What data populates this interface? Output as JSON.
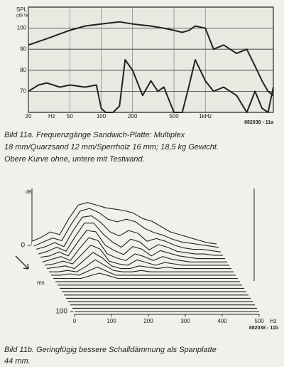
{
  "chart_data": [
    {
      "type": "line",
      "xscale": "log",
      "ylabel": [
        "SPL",
        "(dB W/m)"
      ],
      "xunit": "Hz",
      "xlim": [
        20,
        4500
      ],
      "ylim": [
        60,
        110
      ],
      "xticks": [
        20,
        50,
        100,
        200,
        500,
        {
          "value": 1000,
          "label": "1kHz"
        }
      ],
      "yticks": [
        70,
        80,
        90,
        100
      ],
      "grid": true,
      "series": [
        {
          "color": "#222222",
          "x": [
            20,
            30,
            50,
            70,
            100,
            150,
            200,
            300,
            400,
            500,
            600,
            700,
            800,
            1000,
            1200,
            1500,
            2000,
            2500,
            3000,
            3500,
            4000,
            4500
          ],
          "values": [
            92,
            95,
            99,
            101,
            102,
            103,
            102,
            101,
            100,
            99,
            98,
            99,
            101,
            100,
            90,
            92,
            88,
            90,
            82,
            75,
            70,
            68
          ]
        },
        {
          "color": "#222222",
          "x": [
            20,
            25,
            30,
            40,
            50,
            70,
            90,
            100,
            110,
            130,
            150,
            170,
            200,
            250,
            300,
            350,
            400,
            500,
            600,
            700,
            800,
            1000,
            1200,
            1500,
            2000,
            2500,
            3000,
            3500,
            4000,
            4500
          ],
          "values": [
            70,
            73,
            74,
            72,
            73,
            72,
            73,
            62,
            60,
            60,
            63,
            85,
            80,
            68,
            75,
            70,
            72,
            60,
            60,
            73,
            85,
            75,
            70,
            72,
            68,
            60,
            70,
            62,
            60,
            72
          ]
        }
      ],
      "code": "882038 - 11a",
      "caption": [
        "Bild 11a. Frequenzgänge Sandwich-Platte: Multiplex",
        "18 mm/Quarzsand 12 mm/Sperrholz 16 mm; 18,5 kg Gewicht.",
        "Obere Kurve ohne, untere mit Testwand."
      ]
    },
    {
      "type": "waterfall",
      "zlabel": "dB",
      "ylabel": "ms",
      "xunit": "Hz",
      "xlim": [
        0,
        500
      ],
      "ylim": [
        0,
        100
      ],
      "zlim": [
        0,
        35
      ],
      "xticks": [
        0,
        100,
        200,
        300,
        400,
        500
      ],
      "yticks": [
        0,
        100
      ],
      "x": [
        0,
        25,
        50,
        75,
        100,
        125,
        150,
        175,
        200,
        225,
        250,
        275,
        300,
        325,
        350,
        375,
        400,
        425,
        450,
        475,
        500
      ],
      "times": [
        0,
        5,
        10,
        15,
        20,
        25,
        30,
        35,
        40,
        45,
        50,
        55,
        60,
        65,
        70,
        75,
        80,
        85,
        90,
        95,
        100
      ],
      "series": [
        {
          "values": [
            3,
            6,
            10,
            8,
            20,
            30,
            32,
            30,
            28,
            27,
            26,
            24,
            20,
            18,
            14,
            10,
            8,
            6,
            4,
            2,
            1
          ]
        },
        {
          "values": [
            2,
            5,
            8,
            6,
            18,
            28,
            30,
            27,
            22,
            20,
            22,
            20,
            15,
            12,
            10,
            7,
            5,
            4,
            3,
            2,
            1
          ]
        },
        {
          "values": [
            2,
            4,
            7,
            4,
            16,
            26,
            27,
            22,
            15,
            12,
            16,
            14,
            8,
            10,
            8,
            5,
            3,
            2,
            2,
            1,
            0
          ]
        },
        {
          "values": [
            1,
            3,
            6,
            3,
            14,
            24,
            24,
            16,
            10,
            6,
            12,
            10,
            4,
            8,
            6,
            3,
            2,
            1,
            1,
            0,
            0
          ]
        },
        {
          "values": [
            1,
            2,
            5,
            2,
            12,
            21,
            20,
            10,
            6,
            3,
            9,
            7,
            2,
            6,
            4,
            2,
            1,
            0,
            0,
            0,
            0
          ]
        },
        {
          "values": [
            0,
            2,
            4,
            1,
            10,
            18,
            16,
            6,
            3,
            1,
            6,
            4,
            1,
            4,
            2,
            1,
            0,
            0,
            0,
            0,
            0
          ]
        },
        {
          "values": [
            0,
            1,
            3,
            1,
            8,
            15,
            12,
            3,
            1,
            0,
            4,
            2,
            0,
            2,
            1,
            0,
            0,
            0,
            0,
            0,
            0
          ]
        },
        {
          "values": [
            0,
            1,
            2,
            0,
            6,
            12,
            8,
            2,
            0,
            0,
            2,
            1,
            0,
            1,
            0,
            0,
            0,
            0,
            0,
            0,
            0
          ]
        },
        {
          "values": [
            0,
            0,
            1,
            0,
            4,
            9,
            5,
            1,
            0,
            0,
            1,
            0,
            0,
            0,
            0,
            0,
            0,
            0,
            0,
            0,
            0
          ]
        },
        {
          "values": [
            0,
            0,
            1,
            0,
            3,
            6,
            3,
            0,
            0,
            0,
            0,
            0,
            0,
            0,
            0,
            0,
            0,
            0,
            0,
            0,
            0
          ]
        },
        {
          "values": [
            0,
            0,
            0,
            0,
            2,
            4,
            2,
            0,
            0,
            0,
            0,
            0,
            0,
            0,
            0,
            0,
            0,
            0,
            0,
            0,
            0
          ]
        },
        {
          "values": [
            0,
            0,
            0,
            0,
            0,
            0,
            0,
            0,
            0,
            0,
            0,
            0,
            0,
            0,
            0,
            0,
            0,
            0,
            0,
            0,
            0
          ]
        },
        {
          "values": [
            0,
            0,
            0,
            0,
            0,
            0,
            0,
            0,
            0,
            0,
            0,
            0,
            0,
            0,
            0,
            0,
            0,
            0,
            0,
            0,
            0
          ]
        },
        {
          "values": [
            0,
            0,
            0,
            0,
            0,
            0,
            0,
            0,
            0,
            0,
            0,
            0,
            0,
            0,
            0,
            0,
            0,
            0,
            0,
            0,
            0
          ]
        },
        {
          "values": [
            0,
            0,
            0,
            0,
            0,
            0,
            0,
            0,
            0,
            0,
            0,
            0,
            0,
            0,
            0,
            0,
            0,
            0,
            0,
            0,
            0
          ]
        },
        {
          "values": [
            0,
            0,
            0,
            0,
            0,
            0,
            0,
            0,
            0,
            0,
            0,
            0,
            0,
            0,
            0,
            0,
            0,
            0,
            0,
            0,
            0
          ]
        },
        {
          "values": [
            0,
            0,
            0,
            0,
            0,
            0,
            0,
            0,
            0,
            0,
            0,
            0,
            0,
            0,
            0,
            0,
            0,
            0,
            0,
            0,
            0
          ]
        },
        {
          "values": [
            0,
            0,
            0,
            0,
            0,
            0,
            0,
            0,
            0,
            0,
            0,
            0,
            0,
            0,
            0,
            0,
            0,
            0,
            0,
            0,
            0
          ]
        },
        {
          "values": [
            0,
            0,
            0,
            0,
            0,
            0,
            0,
            0,
            0,
            0,
            0,
            0,
            0,
            0,
            0,
            0,
            0,
            0,
            0,
            0,
            0
          ]
        },
        {
          "values": [
            0,
            0,
            0,
            0,
            0,
            0,
            0,
            0,
            0,
            0,
            0,
            0,
            0,
            0,
            0,
            0,
            0,
            0,
            0,
            0,
            0
          ]
        },
        {
          "values": [
            0,
            0,
            0,
            0,
            0,
            0,
            0,
            0,
            0,
            0,
            0,
            0,
            0,
            0,
            0,
            0,
            0,
            0,
            0,
            0,
            0
          ]
        }
      ],
      "code": "882038 - 11b",
      "caption": [
        "Bild 11b. Geringfügig bessere Schalldämmung als Spanplatte",
        "44 mm."
      ]
    }
  ]
}
